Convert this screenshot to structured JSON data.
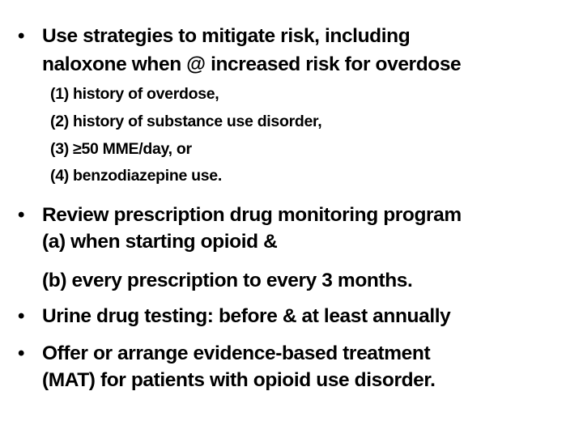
{
  "bullet_glyph": "•",
  "items": [
    {
      "lines": [
        "Use strategies to mitigate risk, including",
        "naloxone when @ increased risk for overdose"
      ],
      "subitems": [
        "(1) history of overdose,",
        "(2) history of substance use disorder,",
        "(3) ≥50 MME/day, or",
        "(4) benzodiazepine use."
      ]
    },
    {
      "lines": [
        "Review prescription drug monitoring program",
        "(a) when starting opioid &",
        "(b) every prescription to every 3 months."
      ]
    },
    {
      "lines": [
        "Urine drug testing: before & at least annually"
      ]
    },
    {
      "lines": [
        "Offer or arrange evidence-based treatment",
        "(MAT) for patients with opioid use disorder."
      ]
    }
  ]
}
